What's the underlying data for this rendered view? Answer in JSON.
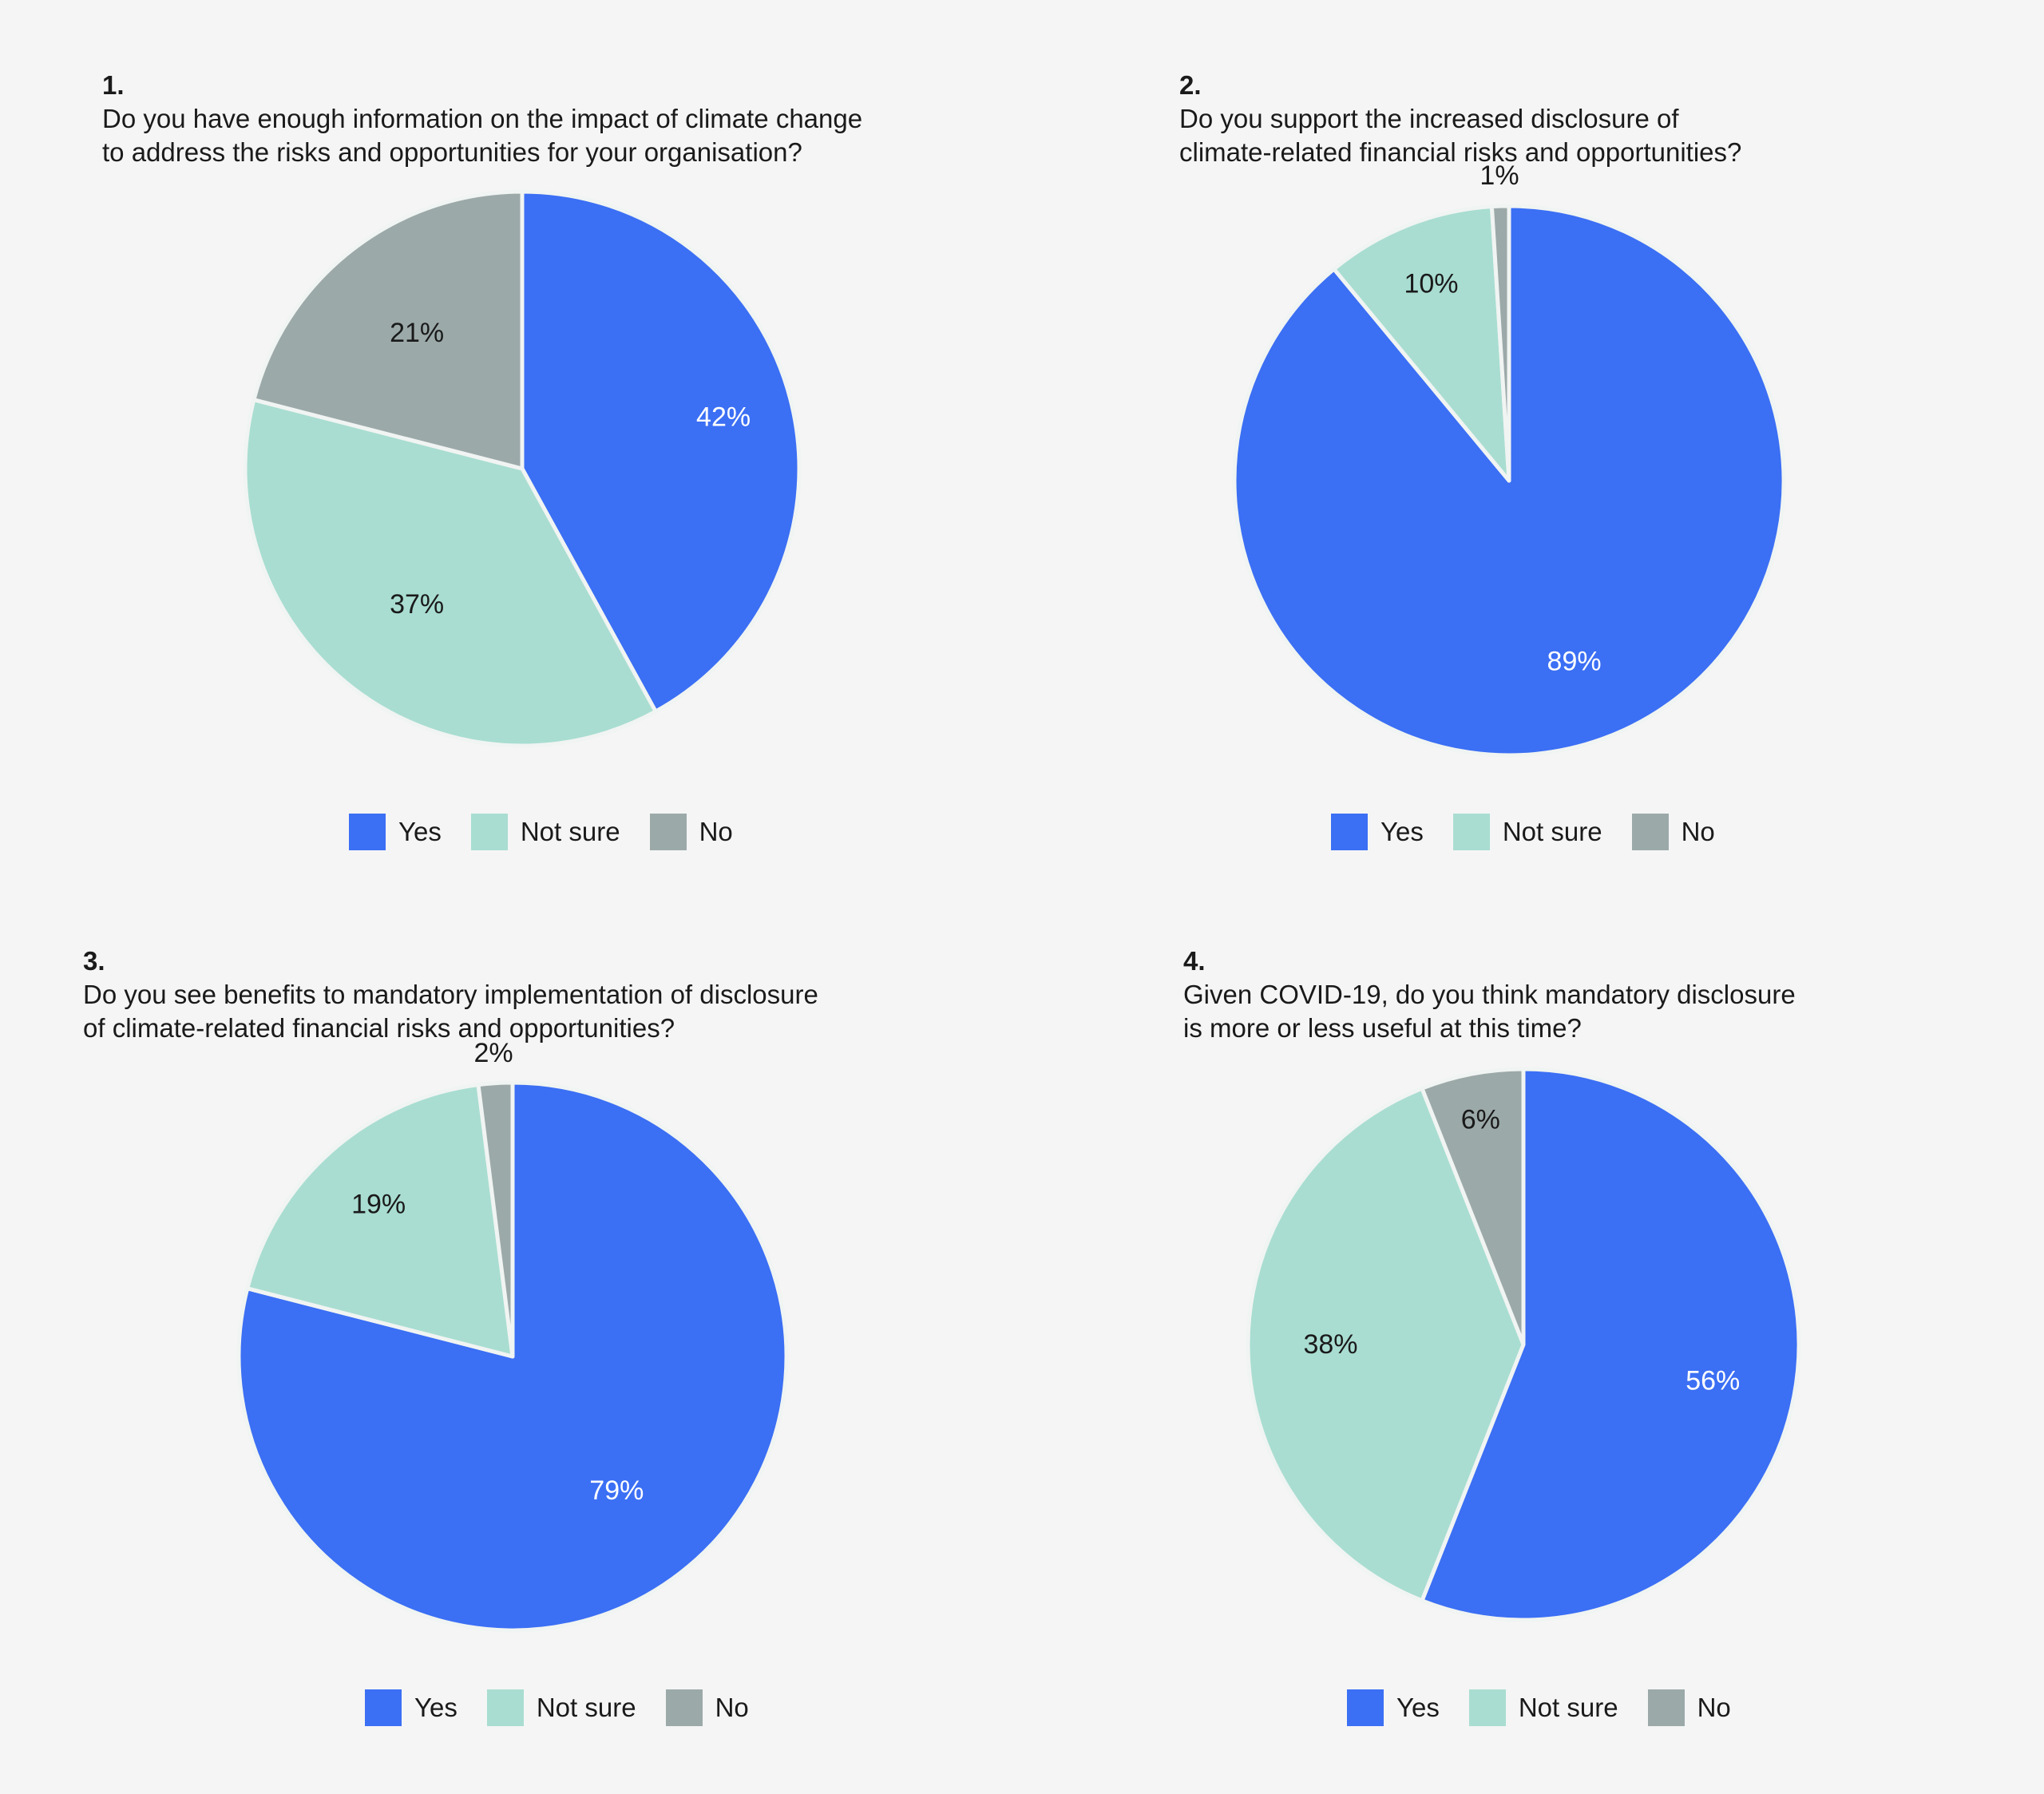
{
  "colors": {
    "yes": "#3b6ff4",
    "not_sure": "#a9ddd1",
    "no": "#9ca9a9",
    "background": "#f5f5f5",
    "label_dark": "#1a1a1a",
    "label_light": "#ffffff"
  },
  "legend_labels": [
    "Yes",
    "Not sure",
    "No"
  ],
  "chart_data": [
    {
      "type": "pie",
      "question_number": "1.",
      "title_lines": [
        "Do you have enough information on the impact of climate change",
        "to address the risks and opportunities for your organisation?"
      ],
      "categories": [
        "Yes",
        "Not sure",
        "No"
      ],
      "values": [
        42,
        37,
        21
      ],
      "labels": [
        "42%",
        "37%",
        "21%"
      ],
      "legend": "bottom-center",
      "start_angle": "12 o'clock, clockwise"
    },
    {
      "type": "pie",
      "question_number": "2.",
      "title_lines": [
        "Do you support the increased disclosure of",
        "climate-related financial risks and opportunities?"
      ],
      "categories": [
        "Yes",
        "Not sure",
        "No"
      ],
      "values": [
        89,
        10,
        1
      ],
      "labels": [
        "89%",
        "10%",
        "1%"
      ],
      "legend": "bottom-center",
      "start_angle": "12 o'clock, clockwise"
    },
    {
      "type": "pie",
      "question_number": "3.",
      "title_lines": [
        "Do you see benefits to mandatory implementation of disclosure",
        "of climate-related financial risks and opportunities?"
      ],
      "categories": [
        "Yes",
        "Not sure",
        "No"
      ],
      "values": [
        79,
        19,
        2
      ],
      "labels": [
        "79%",
        "19%",
        "2%"
      ],
      "legend": "bottom-center",
      "start_angle": "12 o'clock, clockwise"
    },
    {
      "type": "pie",
      "question_number": "4.",
      "title_lines": [
        "Given COVID-19, do you think mandatory disclosure",
        "is more or less useful at this time?"
      ],
      "categories": [
        "Yes",
        "Not sure",
        "No"
      ],
      "values": [
        56,
        38,
        6
      ],
      "labels": [
        "56%",
        "38%",
        "6%"
      ],
      "legend": "bottom-center",
      "start_angle": "12 o'clock, clockwise"
    }
  ]
}
